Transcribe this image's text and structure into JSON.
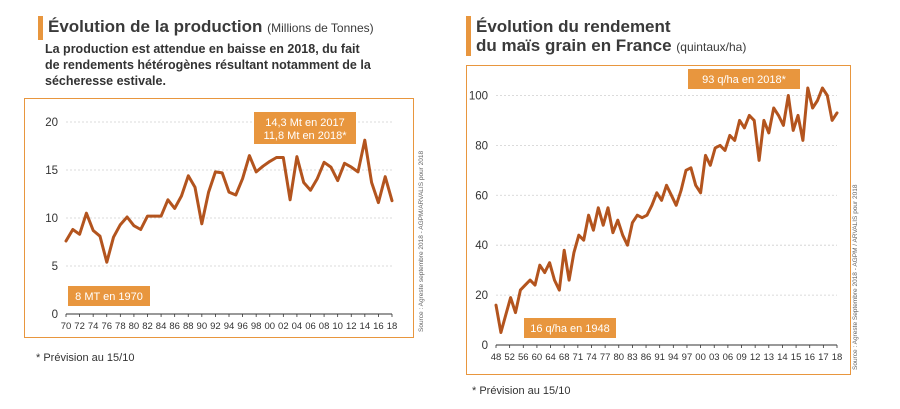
{
  "left": {
    "title": "Évolution de la production",
    "unit": "(Millions de Tonnes)",
    "subtitle_lines": [
      "La production est attendue en baisse en 2018, du fait",
      "de rendements hétérogènes résultant notamment de la",
      "sécheresse estivale."
    ],
    "annotation_top_1": "14,3 Mt en 2017",
    "annotation_top_2": "11,8 Mt en 2018*",
    "annotation_bottom": "8 MT en 1970",
    "source": "Source : Agreste septembre 2018 - AGPM/ARVALIS pour 2018",
    "footnote": "* Prévision au 15/10"
  },
  "right": {
    "title_line1": "Évolution du rendement",
    "title_line2": "du maïs grain en France",
    "unit": "(quintaux/ha)",
    "annotation_top": "93 q/ha en 2018*",
    "annotation_bottom": "16 q/ha en 1948",
    "source": "Source : Agreste Septembre 2018 - AGPM / ARVALIS pour 2018",
    "footnote": "* Prévision au 15/10"
  },
  "colors": {
    "accent": "#e8963e",
    "line": "#b3541e",
    "label_bg": "#e8963e"
  },
  "chart_data": [
    {
      "type": "line",
      "title": "Évolution de la production",
      "ylabel": "(Millions de Tonnes)",
      "ylim": [
        0,
        20
      ],
      "yticks": [
        0,
        5,
        10,
        15,
        20
      ],
      "xtick_labels": [
        "70",
        "72",
        "74",
        "76",
        "78",
        "80",
        "82",
        "84",
        "86",
        "88",
        "90",
        "92",
        "94",
        "96",
        "98",
        "00",
        "02",
        "04",
        "06",
        "08",
        "10",
        "12",
        "14",
        "16",
        "18"
      ],
      "x": [
        1970,
        1971,
        1972,
        1973,
        1974,
        1975,
        1976,
        1977,
        1978,
        1979,
        1980,
        1981,
        1982,
        1983,
        1984,
        1985,
        1986,
        1987,
        1988,
        1989,
        1990,
        1991,
        1992,
        1993,
        1994,
        1995,
        1996,
        1997,
        1998,
        1999,
        2000,
        2001,
        2002,
        2003,
        2004,
        2005,
        2006,
        2007,
        2008,
        2009,
        2010,
        2011,
        2012,
        2013,
        2014,
        2015,
        2016,
        2017,
        2018
      ],
      "series": [
        {
          "values": [
            7.6,
            8.8,
            8.3,
            10.5,
            8.7,
            8.1,
            5.4,
            8.0,
            9.3,
            10.1,
            9.2,
            8.8,
            10.2,
            10.2,
            10.2,
            11.9,
            11.0,
            12.3,
            14.4,
            13.2,
            9.4,
            12.7,
            14.8,
            14.7,
            12.7,
            12.4,
            14.1,
            16.5,
            14.8,
            15.4,
            15.9,
            16.3,
            16.3,
            11.9,
            16.4,
            13.7,
            12.9,
            14.1,
            15.8,
            15.3,
            13.9,
            15.7,
            15.3,
            14.8,
            18.1,
            13.7,
            11.6,
            14.3,
            11.8
          ]
        }
      ],
      "grid": "horizontal"
    },
    {
      "type": "line",
      "title": "Évolution du rendement du maïs grain en France",
      "ylabel": "(quintaux/ha)",
      "ylim": [
        0,
        105
      ],
      "yticks": [
        0,
        20,
        40,
        60,
        80,
        100
      ],
      "xtick_labels": [
        "48",
        "52",
        "56",
        "60",
        "64",
        "68",
        "71",
        "74",
        "77",
        "80",
        "83",
        "86",
        "91",
        "94",
        "97",
        "00",
        "03",
        "06",
        "09",
        "12",
        "13",
        "14",
        "15",
        "16",
        "17",
        "18"
      ],
      "x": [
        1948,
        1949,
        1950,
        1951,
        1952,
        1953,
        1954,
        1955,
        1956,
        1957,
        1958,
        1959,
        1960,
        1961,
        1962,
        1963,
        1964,
        1965,
        1966,
        1967,
        1968,
        1969,
        1970,
        1971,
        1972,
        1973,
        1974,
        1975,
        1976,
        1977,
        1978,
        1979,
        1980,
        1981,
        1982,
        1983,
        1984,
        1985,
        1986,
        1987,
        1988,
        1989,
        1990,
        1991,
        1992,
        1993,
        1994,
        1995,
        1996,
        1997,
        1998,
        1999,
        2000,
        2001,
        2002,
        2003,
        2004,
        2005,
        2006,
        2007,
        2008,
        2009,
        2010,
        2011,
        2012,
        2013,
        2014,
        2015,
        2016,
        2017,
        2018
      ],
      "series": [
        {
          "values": [
            16,
            5,
            12,
            19,
            13,
            22,
            24,
            26,
            24,
            32,
            29,
            33,
            26,
            22,
            38,
            26,
            37,
            44,
            42,
            52,
            46,
            55,
            48,
            55,
            45,
            50,
            44,
            40,
            49,
            52,
            51,
            52,
            56,
            61,
            58,
            64,
            60,
            56,
            62,
            70,
            71,
            64,
            61,
            76,
            72,
            79,
            80,
            78,
            84,
            82,
            90,
            87,
            92,
            90,
            74,
            90,
            85,
            95,
            92,
            88,
            100,
            86,
            92,
            82,
            103,
            95,
            98,
            103,
            100,
            90,
            93
          ]
        }
      ],
      "grid": "horizontal"
    }
  ]
}
